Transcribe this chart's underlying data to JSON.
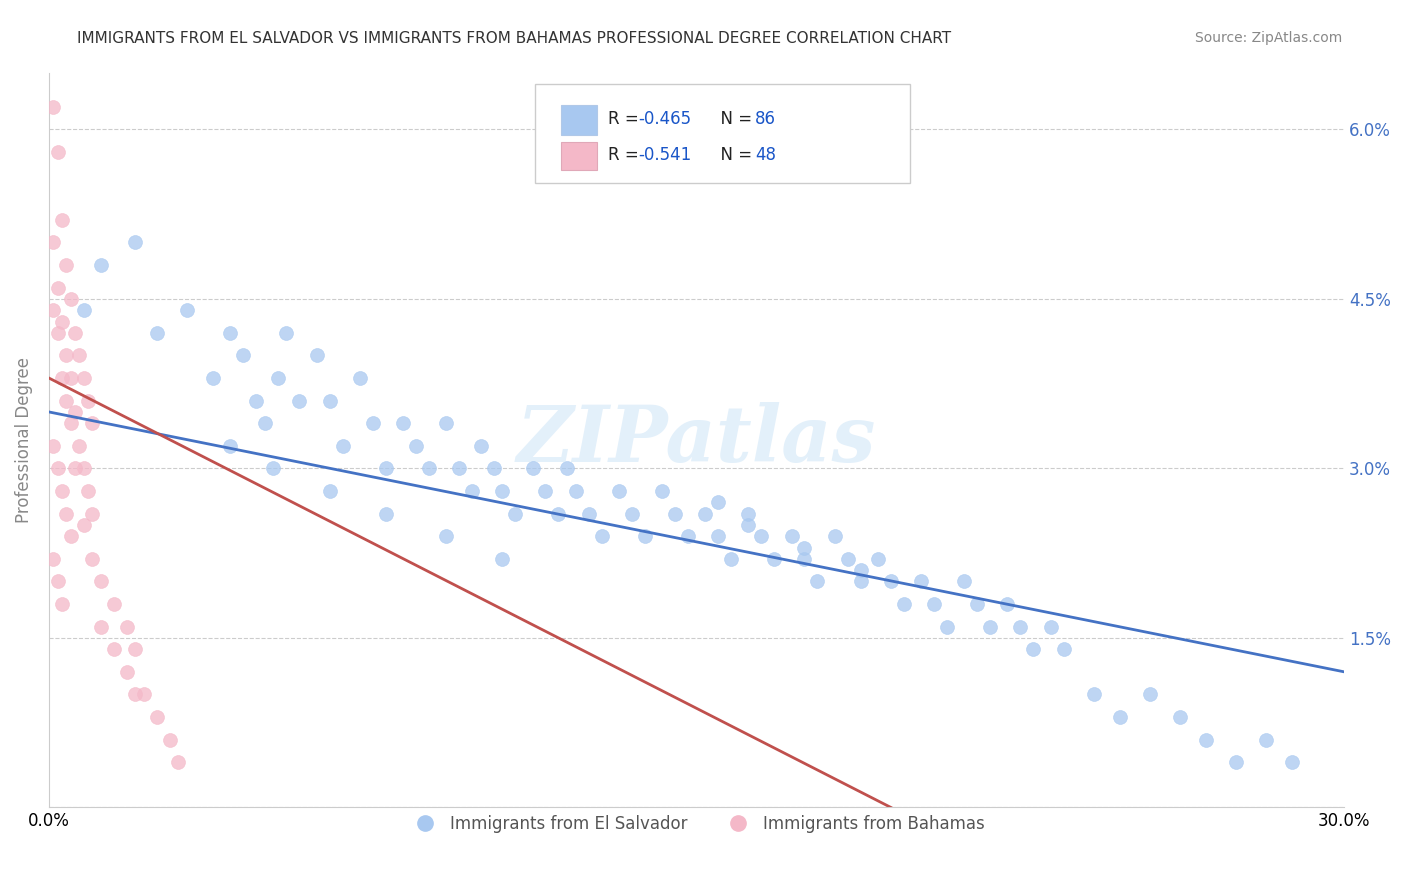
{
  "title": "IMMIGRANTS FROM EL SALVADOR VS IMMIGRANTS FROM BAHAMAS PROFESSIONAL DEGREE CORRELATION CHART",
  "source": "Source: ZipAtlas.com",
  "ylabel": "Professional Degree",
  "yticks": [
    0.0,
    0.015,
    0.03,
    0.045,
    0.06
  ],
  "ytick_labels": [
    "",
    "1.5%",
    "3.0%",
    "4.5%",
    "6.0%"
  ],
  "xlim": [
    0.0,
    0.3
  ],
  "ylim": [
    0.0,
    0.065
  ],
  "legend_r1": "R = -0.465",
  "legend_n1": "N = 86",
  "legend_r2": "R = -0.541",
  "legend_n2": "N = 48",
  "watermark": "ZIPatlas",
  "blue_color": "#a8c8f0",
  "pink_color": "#f4b8c8",
  "line_blue": "#4472C4",
  "line_pink": "#C0504D",
  "scatter_blue_x": [
    0.008,
    0.012,
    0.02,
    0.025,
    0.032,
    0.038,
    0.042,
    0.045,
    0.048,
    0.05,
    0.053,
    0.055,
    0.058,
    0.062,
    0.065,
    0.068,
    0.072,
    0.075,
    0.078,
    0.082,
    0.085,
    0.088,
    0.092,
    0.095,
    0.098,
    0.1,
    0.103,
    0.105,
    0.108,
    0.112,
    0.115,
    0.118,
    0.12,
    0.122,
    0.125,
    0.128,
    0.132,
    0.135,
    0.138,
    0.142,
    0.145,
    0.148,
    0.152,
    0.155,
    0.158,
    0.162,
    0.165,
    0.168,
    0.172,
    0.175,
    0.178,
    0.182,
    0.185,
    0.188,
    0.192,
    0.195,
    0.198,
    0.202,
    0.205,
    0.208,
    0.212,
    0.215,
    0.218,
    0.222,
    0.225,
    0.228,
    0.232,
    0.235,
    0.242,
    0.248,
    0.255,
    0.262,
    0.268,
    0.275,
    0.282,
    0.288,
    0.155,
    0.162,
    0.175,
    0.188,
    0.042,
    0.052,
    0.065,
    0.078,
    0.092,
    0.105
  ],
  "scatter_blue_y": [
    0.044,
    0.048,
    0.05,
    0.042,
    0.044,
    0.038,
    0.042,
    0.04,
    0.036,
    0.034,
    0.038,
    0.042,
    0.036,
    0.04,
    0.036,
    0.032,
    0.038,
    0.034,
    0.03,
    0.034,
    0.032,
    0.03,
    0.034,
    0.03,
    0.028,
    0.032,
    0.03,
    0.028,
    0.026,
    0.03,
    0.028,
    0.026,
    0.03,
    0.028,
    0.026,
    0.024,
    0.028,
    0.026,
    0.024,
    0.028,
    0.026,
    0.024,
    0.026,
    0.024,
    0.022,
    0.026,
    0.024,
    0.022,
    0.024,
    0.022,
    0.02,
    0.024,
    0.022,
    0.02,
    0.022,
    0.02,
    0.018,
    0.02,
    0.018,
    0.016,
    0.02,
    0.018,
    0.016,
    0.018,
    0.016,
    0.014,
    0.016,
    0.014,
    0.01,
    0.008,
    0.01,
    0.008,
    0.006,
    0.004,
    0.006,
    0.004,
    0.027,
    0.025,
    0.023,
    0.021,
    0.032,
    0.03,
    0.028,
    0.026,
    0.024,
    0.022
  ],
  "scatter_pink_x": [
    0.001,
    0.002,
    0.003,
    0.004,
    0.005,
    0.006,
    0.007,
    0.008,
    0.009,
    0.01,
    0.001,
    0.002,
    0.003,
    0.004,
    0.005,
    0.006,
    0.007,
    0.008,
    0.009,
    0.01,
    0.001,
    0.002,
    0.003,
    0.004,
    0.005,
    0.006,
    0.001,
    0.002,
    0.003,
    0.004,
    0.005,
    0.001,
    0.002,
    0.003,
    0.008,
    0.01,
    0.012,
    0.015,
    0.018,
    0.02,
    0.022,
    0.025,
    0.028,
    0.03,
    0.012,
    0.015,
    0.018,
    0.02
  ],
  "scatter_pink_y": [
    0.062,
    0.058,
    0.052,
    0.048,
    0.045,
    0.042,
    0.04,
    0.038,
    0.036,
    0.034,
    0.05,
    0.046,
    0.043,
    0.04,
    0.038,
    0.035,
    0.032,
    0.03,
    0.028,
    0.026,
    0.044,
    0.042,
    0.038,
    0.036,
    0.034,
    0.03,
    0.032,
    0.03,
    0.028,
    0.026,
    0.024,
    0.022,
    0.02,
    0.018,
    0.025,
    0.022,
    0.02,
    0.018,
    0.016,
    0.014,
    0.01,
    0.008,
    0.006,
    0.004,
    0.016,
    0.014,
    0.012,
    0.01
  ],
  "blue_trendline_x": [
    0.0,
    0.3
  ],
  "blue_trendline_y": [
    0.035,
    0.012
  ],
  "pink_trendline_x0": 0.0,
  "pink_trendline_y0": 0.038,
  "pink_trendline_x1": 0.195,
  "pink_trendline_y1": 0.0
}
